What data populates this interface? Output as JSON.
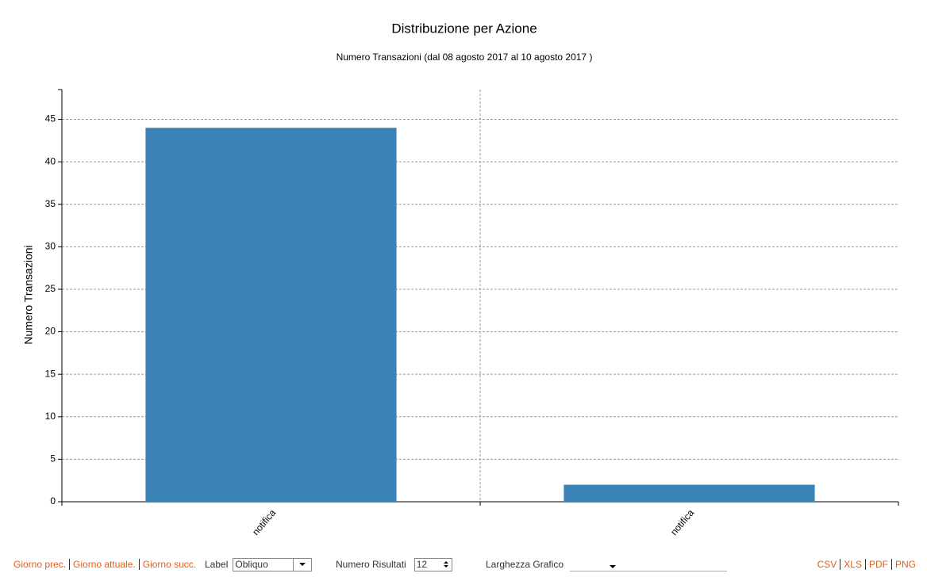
{
  "chart_data": {
    "type": "bar",
    "title": "Distribuzione per Azione",
    "subtitle": "Numero Transazioni (dal 08 agosto 2017 al 10 agosto 2017 )",
    "y_label": "Numero Transazioni",
    "categories": [
      "notifica",
      "notifica"
    ],
    "values": [
      44,
      2
    ],
    "color": "#3b82b6",
    "ylim": [
      0,
      48.5
    ],
    "yticks": [
      0,
      5,
      10,
      15,
      20,
      25,
      30,
      35,
      40,
      45
    ],
    "grid": true
  },
  "controls": {
    "nav_links": [
      "Giorno prec.",
      "Giorno attuale.",
      "Giorno succ."
    ],
    "label_field": {
      "label": "Label",
      "value": "Obliquo"
    },
    "results_field": {
      "label": "Numero Risultati",
      "value": "12"
    },
    "width_field": {
      "label": "Larghezza Grafico"
    },
    "export_links": [
      "CSV",
      "XLS",
      "PDF",
      "PNG"
    ]
  }
}
